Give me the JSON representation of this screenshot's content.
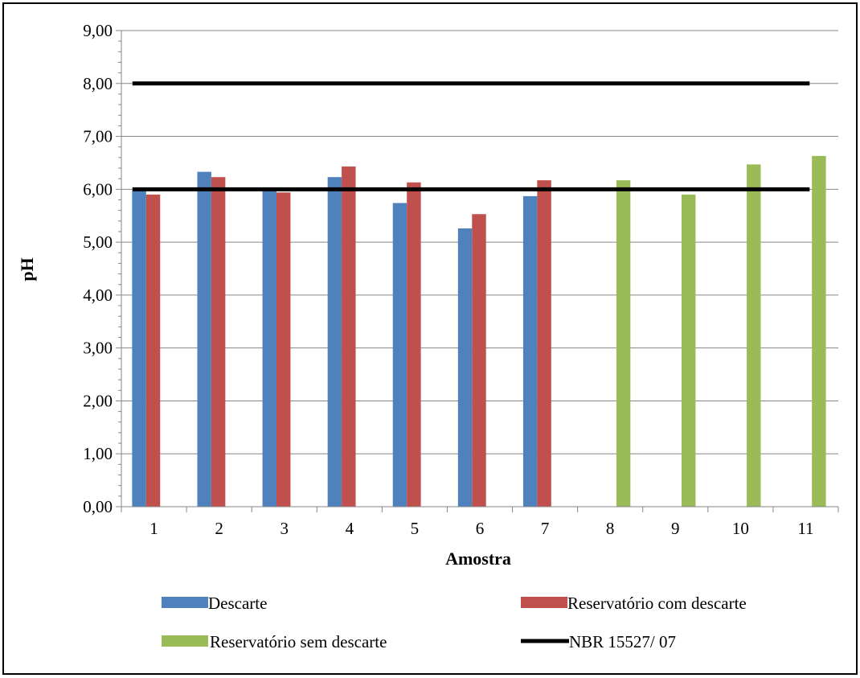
{
  "chart_data": {
    "type": "bar",
    "title": "",
    "xlabel": "Amostra",
    "ylabel": "pH",
    "ylim": [
      0,
      9
    ],
    "y_ticks": [
      "0,00",
      "1,00",
      "2,00",
      "3,00",
      "4,00",
      "5,00",
      "6,00",
      "7,00",
      "8,00",
      "9,00"
    ],
    "categories": [
      "1",
      "2",
      "3",
      "4",
      "5",
      "6",
      "7",
      "8",
      "9",
      "10",
      "11"
    ],
    "grid": "horizontal",
    "legend_position": "bottom",
    "series": [
      {
        "name": "Descarte",
        "color": "#4F81BD",
        "values": [
          5.97,
          6.33,
          6.0,
          6.23,
          5.74,
          5.26,
          5.87,
          null,
          null,
          null,
          null
        ]
      },
      {
        "name": "Reservatório com descarte",
        "color": "#C0504D",
        "values": [
          5.9,
          6.23,
          5.94,
          6.43,
          6.13,
          5.53,
          6.17,
          null,
          null,
          null,
          null
        ]
      },
      {
        "name": "Reservatório sem descarte",
        "color": "#9BBB59",
        "values": [
          null,
          null,
          null,
          null,
          null,
          null,
          null,
          6.17,
          5.9,
          6.47,
          6.63
        ]
      }
    ],
    "reference_lines": {
      "name": "NBR 15527/ 07",
      "color": "#000000",
      "values": [
        6.0,
        8.0
      ]
    }
  }
}
